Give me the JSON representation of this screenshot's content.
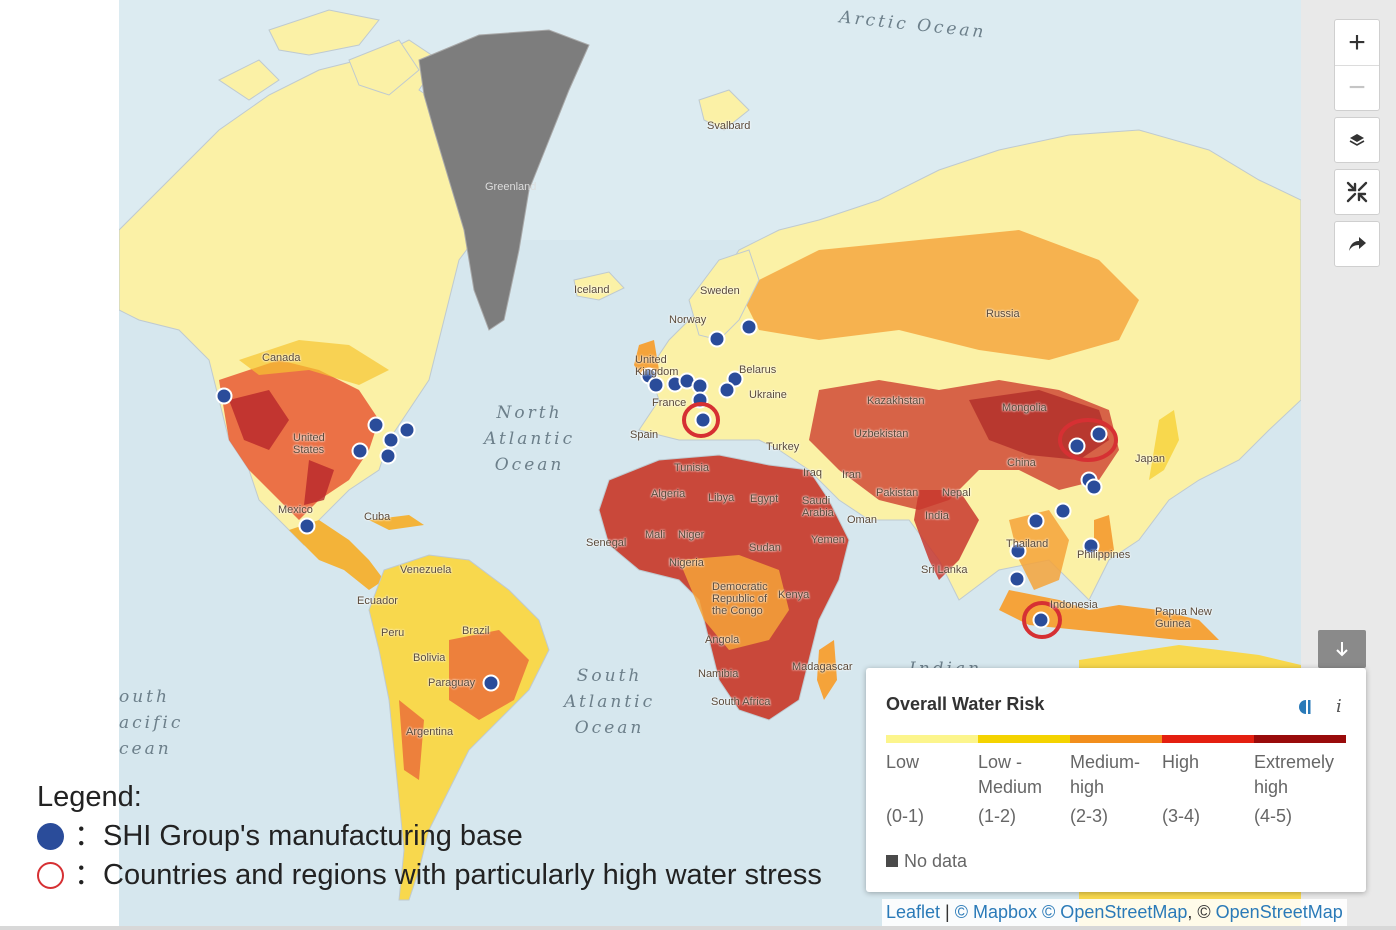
{
  "map": {
    "oceans": [
      {
        "name": "arctic",
        "label": "Arctic Ocean"
      },
      {
        "name": "north-atlantic",
        "label": "North\nAtlantic\nOcean"
      },
      {
        "name": "south-atlantic",
        "label": "South\nAtlantic\nOcean"
      },
      {
        "name": "south-pacific",
        "label": "outh\nacific\ncean"
      },
      {
        "name": "indian",
        "label": "Indian"
      }
    ],
    "places": [
      {
        "name": "greenland",
        "label": "Greenland"
      },
      {
        "name": "svalbard",
        "label": "Svalbard"
      },
      {
        "name": "iceland",
        "label": "Iceland"
      },
      {
        "name": "sweden",
        "label": "Sweden"
      },
      {
        "name": "norway",
        "label": "Norway"
      },
      {
        "name": "russia",
        "label": "Russia"
      },
      {
        "name": "canada",
        "label": "Canada"
      },
      {
        "name": "united-kingdom",
        "label": "United\nKingdom"
      },
      {
        "name": "belarus",
        "label": "Belarus"
      },
      {
        "name": "ukraine",
        "label": "Ukraine"
      },
      {
        "name": "france",
        "label": "France"
      },
      {
        "name": "kazakhstan",
        "label": "Kazakhstan"
      },
      {
        "name": "mongolia",
        "label": "Mongolia"
      },
      {
        "name": "uzbekistan",
        "label": "Uzbekistan"
      },
      {
        "name": "spain",
        "label": "Spain"
      },
      {
        "name": "turkey",
        "label": "Turkey"
      },
      {
        "name": "united-states",
        "label": "United\nStates"
      },
      {
        "name": "japan",
        "label": "Japan"
      },
      {
        "name": "china",
        "label": "China"
      },
      {
        "name": "tunisia",
        "label": "Tunisia"
      },
      {
        "name": "iraq",
        "label": "Iraq"
      },
      {
        "name": "iran",
        "label": "Iran"
      },
      {
        "name": "algeria",
        "label": "Algeria"
      },
      {
        "name": "libya",
        "label": "Libya"
      },
      {
        "name": "egypt",
        "label": "Egypt"
      },
      {
        "name": "pakistan",
        "label": "Pakistan"
      },
      {
        "name": "nepal",
        "label": "Nepal"
      },
      {
        "name": "mexico",
        "label": "Mexico"
      },
      {
        "name": "cuba",
        "label": "Cuba"
      },
      {
        "name": "saudi-arabia",
        "label": "Saudi\nArabia"
      },
      {
        "name": "oman",
        "label": "Oman"
      },
      {
        "name": "india",
        "label": "India"
      },
      {
        "name": "senegal",
        "label": "Senegal"
      },
      {
        "name": "mali",
        "label": "Mali"
      },
      {
        "name": "niger",
        "label": "Niger"
      },
      {
        "name": "sudan",
        "label": "Sudan"
      },
      {
        "name": "yemen",
        "label": "Yemen"
      },
      {
        "name": "thailand",
        "label": "Thailand"
      },
      {
        "name": "philippines",
        "label": "Philippines"
      },
      {
        "name": "venezuela",
        "label": "Venezuela"
      },
      {
        "name": "nigeria",
        "label": "Nigeria"
      },
      {
        "name": "sri-lanka",
        "label": "Sri Lanka"
      },
      {
        "name": "ecuador",
        "label": "Ecuador"
      },
      {
        "name": "drc",
        "label": "Democratic\nRepublic of\nthe Congo"
      },
      {
        "name": "kenya",
        "label": "Kenya"
      },
      {
        "name": "indonesia",
        "label": "Indonesia"
      },
      {
        "name": "papua-new-guinea",
        "label": "Papua New\nGuinea"
      },
      {
        "name": "peru",
        "label": "Peru"
      },
      {
        "name": "brazil",
        "label": "Brazil"
      },
      {
        "name": "angola",
        "label": "Angola"
      },
      {
        "name": "bolivia",
        "label": "Bolivia"
      },
      {
        "name": "madagascar",
        "label": "Madagascar"
      },
      {
        "name": "namibia",
        "label": "Namibia"
      },
      {
        "name": "paraguay",
        "label": "Paraguay"
      },
      {
        "name": "south-africa",
        "label": "South Africa"
      },
      {
        "name": "argentina",
        "label": "Argentina"
      }
    ],
    "manufacturing_base_color": "#2a4c9a",
    "high_stress_ring_color": "#d63033"
  },
  "controls": {
    "zoom_in": "+",
    "zoom_out": "−",
    "layers_icon": "layers-icon",
    "collapse_icon": "compress-arrows-icon",
    "share_icon": "share-arrow-icon",
    "toggle_legend_icon": "arrow-down-icon"
  },
  "legend_panel": {
    "title": "Overall Water Risk",
    "info": "i",
    "categories": [
      {
        "name": "Low",
        "range": "(0-1)",
        "color": "#fcf58c"
      },
      {
        "name": "Low -\nMedium",
        "range": "(1-2)",
        "color": "#f4d300"
      },
      {
        "name": "Medium-\nhigh",
        "range": "(2-3)",
        "color": "#f28e1d"
      },
      {
        "name": "High",
        "range": "(3-4)",
        "color": "#e41f10"
      },
      {
        "name": "Extremely\nhigh",
        "range": "(4-5)",
        "color": "#990b0b"
      }
    ],
    "no_data": "No data",
    "no_data_color": "#4a4a4a"
  },
  "attribution": {
    "leaflet": "Leaflet",
    "sep1": " | ",
    "mapbox": "© Mapbox",
    "osm1": " © OpenStreetMap",
    "sep2": ", © ",
    "osm2": "OpenStreetMap"
  },
  "overlay_legend": {
    "title": "Legend:",
    "base_text": "：SHI Group's manufacturing base",
    "stress_text": "：Countries and regions with particularly high water stress"
  }
}
